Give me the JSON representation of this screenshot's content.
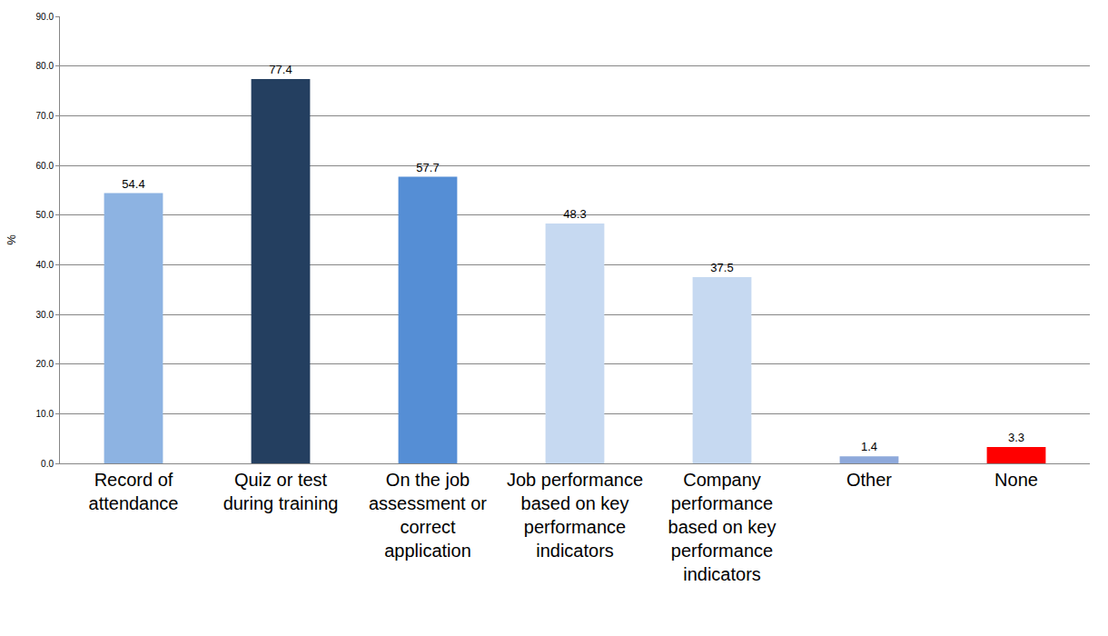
{
  "chart_data": {
    "type": "bar",
    "categories": [
      "Record of attendance",
      "Quiz or test during training",
      "On the job assessment or correct application",
      "Job performance based on key performance indicators",
      "Company performance based on key performance indicators",
      "Other",
      "None"
    ],
    "values": [
      54.4,
      77.4,
      57.7,
      48.3,
      37.5,
      1.4,
      3.3
    ],
    "colors": [
      "#8db3e2",
      "#243f60",
      "#558ed5",
      "#c6d9f1",
      "#c6d9f1",
      "#8ea9db",
      "#ff0000"
    ],
    "y_label": "%",
    "ylim": [
      0,
      90
    ],
    "yticks": [
      {
        "value": 0,
        "label": "0.0"
      },
      {
        "value": 10,
        "label": "10.0"
      },
      {
        "value": 20,
        "label": "20.0"
      },
      {
        "value": 30,
        "label": "30.0"
      },
      {
        "value": 40,
        "label": "40.0"
      },
      {
        "value": 50,
        "label": "50.0"
      },
      {
        "value": 60,
        "label": "60.0"
      },
      {
        "value": 70,
        "label": "70.0"
      },
      {
        "value": 80,
        "label": "80.0"
      },
      {
        "value": 90,
        "label": "90.0"
      }
    ],
    "grid": true,
    "data_labels": true
  }
}
